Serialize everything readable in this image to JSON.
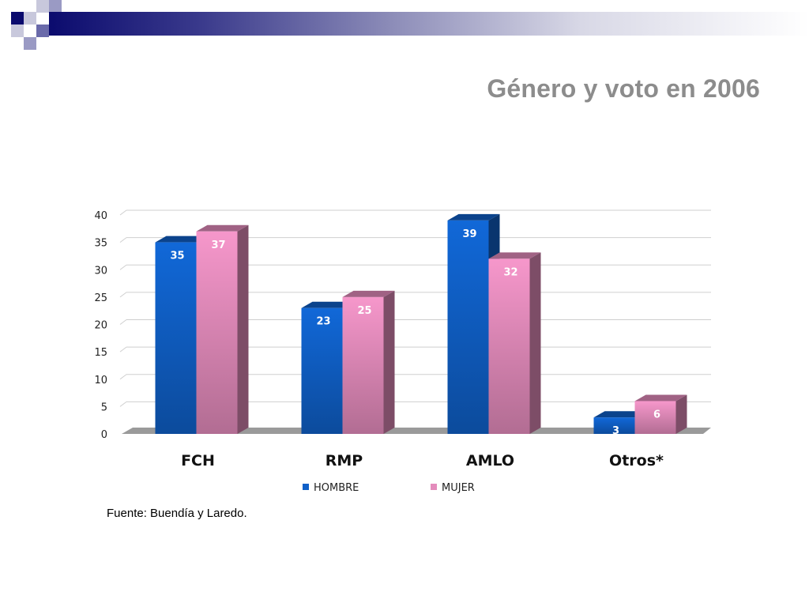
{
  "slide": {
    "title": "Género y voto en 2006",
    "source": "Fuente: Buendía y Laredo."
  },
  "colors": {
    "hombre": "#1060c8",
    "mujer": "#e48cbc",
    "title": "#8c8c8c",
    "band_dark": "#0b0b6e"
  },
  "chart_data": {
    "type": "bar",
    "categories": [
      "FCH",
      "RMP",
      "AMLO",
      "Otros*"
    ],
    "series": [
      {
        "name": "HOMBRE",
        "values": [
          35,
          23,
          39,
          3
        ]
      },
      {
        "name": "MUJER",
        "values": [
          37,
          25,
          32,
          6
        ]
      }
    ],
    "ylim": [
      0,
      40
    ],
    "yticks": [
      0,
      5,
      10,
      15,
      20,
      25,
      30,
      35,
      40
    ],
    "grid": true,
    "legend": "bottom",
    "bar_style": "3d"
  }
}
